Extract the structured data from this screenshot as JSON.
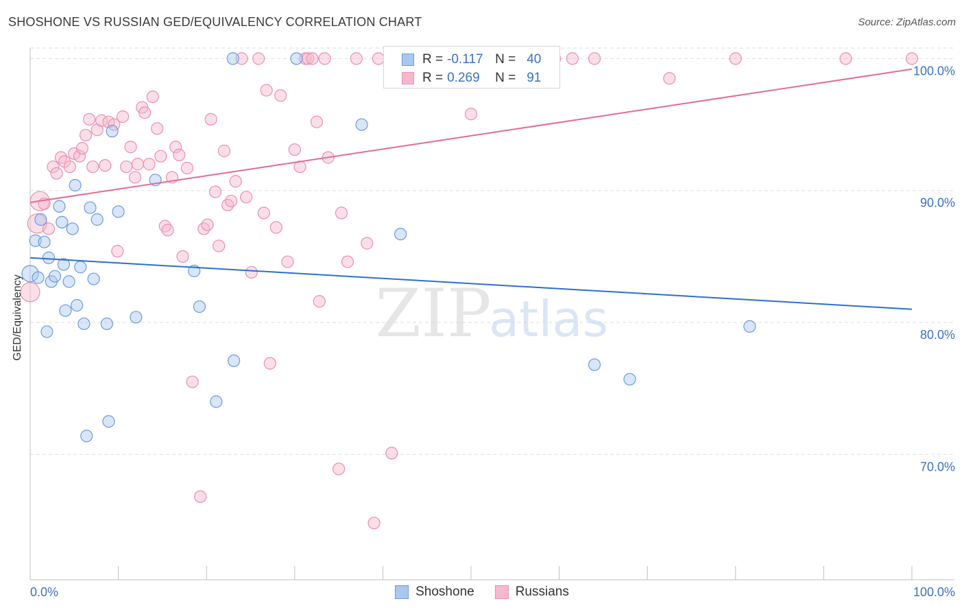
{
  "title": "SHOSHONE VS RUSSIAN GED/EQUIVALENCY CORRELATION CHART",
  "source": "Source: ZipAtlas.com",
  "watermark": {
    "zip": "ZIP",
    "atlas": "atlas"
  },
  "legend": {
    "rows": [
      {
        "r_label": "R =",
        "r_value": "-0.117",
        "n_label": "N =",
        "n_value": "40"
      },
      {
        "r_label": "R =",
        "r_value": "0.269",
        "n_label": "N =",
        "n_value": "91"
      }
    ]
  },
  "series_labels": [
    "Shoshone",
    "Russians"
  ],
  "colors": {
    "shoshone_fill": "#a8c8f0",
    "shoshone_stroke": "#6a9be0",
    "shoshone_line": "#2b6fd0",
    "russians_fill": "#f7b8cc",
    "russians_stroke": "#ea8fae",
    "russians_line": "#e46a96",
    "axis_label": "#3a70c8",
    "grid": "#dddddd"
  },
  "chart_data": {
    "type": "scatter",
    "title": "SHOSHONE VS RUSSIAN GED/EQUIVALENCY CORRELATION CHART",
    "xlabel": "",
    "ylabel": "GED/Equivalency",
    "xlim": [
      0,
      100
    ],
    "ylim": [
      60.5,
      100.8
    ],
    "x_tick_labels": [
      "0.0%",
      "100.0%"
    ],
    "y_ticks": [
      70,
      80,
      90,
      100
    ],
    "y_tick_labels": [
      "70.0%",
      "80.0%",
      "90.0%",
      "100.0%"
    ],
    "grid": true,
    "legend_position": "top-center",
    "series": [
      {
        "name": "Shoshone",
        "trend": [
          [
            0,
            84.9
          ],
          [
            100,
            81.0
          ]
        ],
        "points": [
          [
            0.0,
            83.7
          ],
          [
            0.6,
            86.2
          ],
          [
            0.9,
            83.4
          ],
          [
            1.2,
            87.8
          ],
          [
            1.6,
            86.1
          ],
          [
            1.9,
            79.3
          ],
          [
            2.1,
            84.9
          ],
          [
            2.4,
            83.1
          ],
          [
            2.8,
            83.5
          ],
          [
            3.3,
            88.8
          ],
          [
            3.6,
            87.6
          ],
          [
            3.8,
            84.4
          ],
          [
            4.0,
            80.9
          ],
          [
            4.4,
            83.1
          ],
          [
            4.8,
            87.1
          ],
          [
            5.1,
            90.4
          ],
          [
            5.3,
            81.3
          ],
          [
            5.7,
            84.2
          ],
          [
            6.1,
            79.9
          ],
          [
            6.4,
            71.4
          ],
          [
            6.8,
            88.7
          ],
          [
            7.2,
            83.3
          ],
          [
            7.6,
            87.8
          ],
          [
            8.7,
            79.9
          ],
          [
            8.9,
            72.5
          ],
          [
            9.3,
            94.5
          ],
          [
            10.0,
            88.4
          ],
          [
            12.0,
            80.4
          ],
          [
            14.2,
            90.8
          ],
          [
            18.6,
            83.9
          ],
          [
            19.2,
            81.2
          ],
          [
            21.1,
            74.0
          ],
          [
            23.0,
            100.0
          ],
          [
            23.1,
            77.1
          ],
          [
            30.2,
            100.0
          ],
          [
            37.6,
            95.0
          ],
          [
            42.0,
            86.7
          ],
          [
            64.0,
            76.8
          ],
          [
            68.0,
            75.7
          ],
          [
            81.6,
            79.7
          ]
        ]
      },
      {
        "name": "Russians",
        "trend": [
          [
            0,
            89.1
          ],
          [
            100,
            99.2
          ]
        ],
        "points": [
          [
            0.0,
            82.3
          ],
          [
            0.8,
            87.5
          ],
          [
            1.1,
            89.2
          ],
          [
            1.6,
            89.0
          ],
          [
            2.1,
            87.1
          ],
          [
            2.6,
            91.8
          ],
          [
            3.0,
            91.3
          ],
          [
            3.5,
            92.5
          ],
          [
            3.9,
            92.2
          ],
          [
            4.5,
            91.8
          ],
          [
            5.0,
            92.8
          ],
          [
            5.6,
            92.6
          ],
          [
            5.9,
            93.2
          ],
          [
            6.3,
            94.2
          ],
          [
            6.7,
            95.4
          ],
          [
            7.1,
            91.8
          ],
          [
            7.6,
            94.6
          ],
          [
            8.1,
            95.3
          ],
          [
            8.5,
            91.9
          ],
          [
            8.9,
            95.2
          ],
          [
            9.5,
            95.0
          ],
          [
            9.9,
            85.4
          ],
          [
            10.5,
            95.6
          ],
          [
            10.9,
            91.8
          ],
          [
            11.4,
            93.3
          ],
          [
            11.9,
            91.0
          ],
          [
            12.2,
            92.0
          ],
          [
            12.7,
            96.3
          ],
          [
            13.0,
            95.9
          ],
          [
            13.5,
            92.0
          ],
          [
            13.9,
            97.1
          ],
          [
            14.4,
            94.7
          ],
          [
            14.8,
            92.6
          ],
          [
            15.3,
            87.3
          ],
          [
            15.6,
            87.0
          ],
          [
            16.1,
            91.0
          ],
          [
            16.5,
            93.3
          ],
          [
            16.9,
            92.7
          ],
          [
            17.3,
            85.0
          ],
          [
            17.8,
            91.7
          ],
          [
            18.4,
            75.5
          ],
          [
            19.3,
            66.8
          ],
          [
            19.7,
            87.1
          ],
          [
            20.1,
            87.4
          ],
          [
            20.5,
            95.4
          ],
          [
            21.0,
            89.9
          ],
          [
            21.4,
            85.8
          ],
          [
            22.0,
            93.0
          ],
          [
            22.4,
            88.9
          ],
          [
            22.8,
            89.2
          ],
          [
            23.3,
            90.7
          ],
          [
            24.0,
            100.0
          ],
          [
            24.5,
            89.5
          ],
          [
            25.1,
            83.8
          ],
          [
            25.9,
            100.0
          ],
          [
            26.5,
            88.3
          ],
          [
            26.8,
            97.6
          ],
          [
            27.2,
            76.9
          ],
          [
            27.9,
            87.2
          ],
          [
            28.4,
            97.2
          ],
          [
            29.2,
            84.6
          ],
          [
            30.0,
            93.1
          ],
          [
            30.6,
            91.8
          ],
          [
            31.2,
            100.0
          ],
          [
            31.5,
            100.0
          ],
          [
            32.0,
            100.0
          ],
          [
            32.5,
            95.2
          ],
          [
            32.8,
            81.6
          ],
          [
            33.4,
            100.0
          ],
          [
            33.8,
            92.5
          ],
          [
            35.0,
            68.9
          ],
          [
            35.3,
            88.3
          ],
          [
            36.0,
            84.6
          ],
          [
            37.0,
            100.0
          ],
          [
            38.2,
            86.0
          ],
          [
            39.0,
            64.8
          ],
          [
            39.5,
            100.0
          ],
          [
            41.0,
            70.1
          ],
          [
            42.5,
            100.0
          ],
          [
            47.5,
            100.0
          ],
          [
            50.0,
            95.8
          ],
          [
            51.0,
            100.0
          ],
          [
            52.0,
            100.0
          ],
          [
            53.0,
            100.0
          ],
          [
            59.5,
            100.0
          ],
          [
            61.5,
            100.0
          ],
          [
            64.0,
            100.0
          ],
          [
            72.5,
            98.5
          ],
          [
            80.0,
            100.0
          ],
          [
            92.5,
            100.0
          ],
          [
            100.0,
            100.0
          ]
        ]
      }
    ]
  }
}
